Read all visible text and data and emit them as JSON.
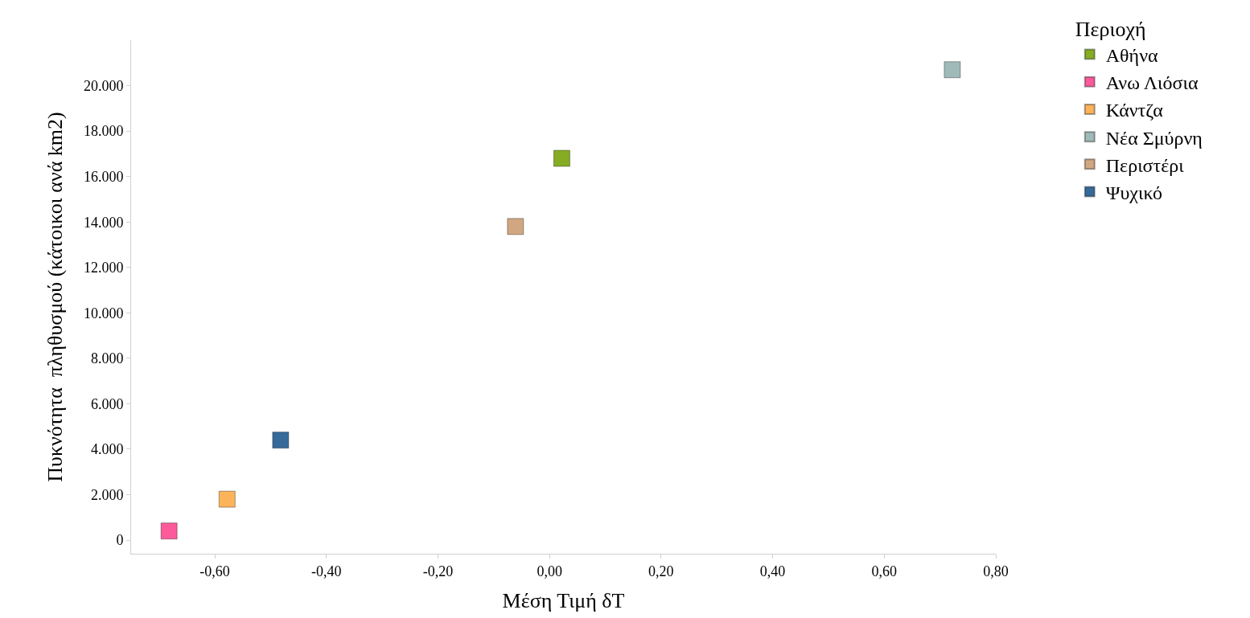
{
  "chart_data": {
    "type": "scatter",
    "xlabel": "Μέση Τιμή δT",
    "ylabel": "Πυκνότητα  πληθυσμού (κάτοικοι ανά km2)",
    "legend_title": "Περιοχή",
    "legend": "top right",
    "marker": "square",
    "grid": false,
    "series": [
      {
        "name": "Αθήνα",
        "color": "#86ac23",
        "x": [
          0.022
        ],
        "values": [
          16800
        ]
      },
      {
        "name": "Ανω Λιόσια",
        "color": "#fc5a9a",
        "x": [
          -0.682
        ],
        "values": [
          400
        ]
      },
      {
        "name": "Κάντζα",
        "color": "#fdb35a",
        "x": [
          -0.578
        ],
        "values": [
          1800
        ]
      },
      {
        "name": "Νέα Σμύρνη",
        "color": "#9fbab8",
        "x": [
          0.722
        ],
        "values": [
          20700
        ]
      },
      {
        "name": "Περιστέρι",
        "color": "#d1a782",
        "x": [
          -0.061
        ],
        "values": [
          13800
        ]
      },
      {
        "name": "Ψυχικό",
        "color": "#356a9a",
        "x": [
          -0.482
        ],
        "values": [
          4400
        ]
      }
    ],
    "xlim": [
      -0.75,
      0.8
    ],
    "xticks": [
      {
        "value": -0.6,
        "label": "-0,60"
      },
      {
        "value": -0.4,
        "label": "-0,40"
      },
      {
        "value": -0.2,
        "label": "-0,20"
      },
      {
        "value": 0,
        "label": "0,00"
      },
      {
        "value": 0.2,
        "label": "0,20"
      },
      {
        "value": 0.4,
        "label": "0,40"
      },
      {
        "value": 0.6,
        "label": "0,60"
      },
      {
        "value": 0.8,
        "label": "0,80"
      }
    ],
    "ylim": [
      -600,
      22000
    ],
    "yticks": [
      0,
      {
        "value": 2000,
        "label": "2.000"
      },
      {
        "value": 4000,
        "label": "4.000"
      },
      {
        "value": 6000,
        "label": "6.000"
      },
      {
        "value": 8000,
        "label": "8.000"
      },
      {
        "value": 10000,
        "label": "10.000"
      },
      {
        "value": 12000,
        "label": "12.000"
      },
      {
        "value": 14000,
        "label": "14.000"
      },
      {
        "value": 16000,
        "label": "16.000"
      },
      {
        "value": 18000,
        "label": "18.000"
      },
      {
        "value": 20000,
        "label": "20.000"
      }
    ]
  }
}
